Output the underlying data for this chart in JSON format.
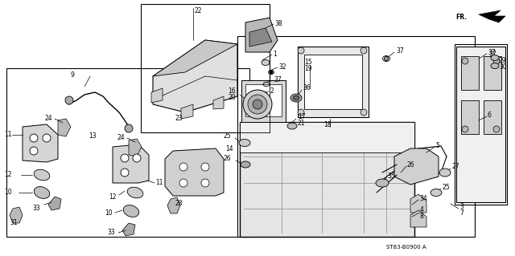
{
  "bg_color": "#ffffff",
  "diagram_code": "ST83-B0900 A",
  "fr_label": "FR.",
  "fig_width": 6.4,
  "fig_height": 3.19,
  "dpi": 100,
  "lc": "#000000",
  "lw": 0.7
}
